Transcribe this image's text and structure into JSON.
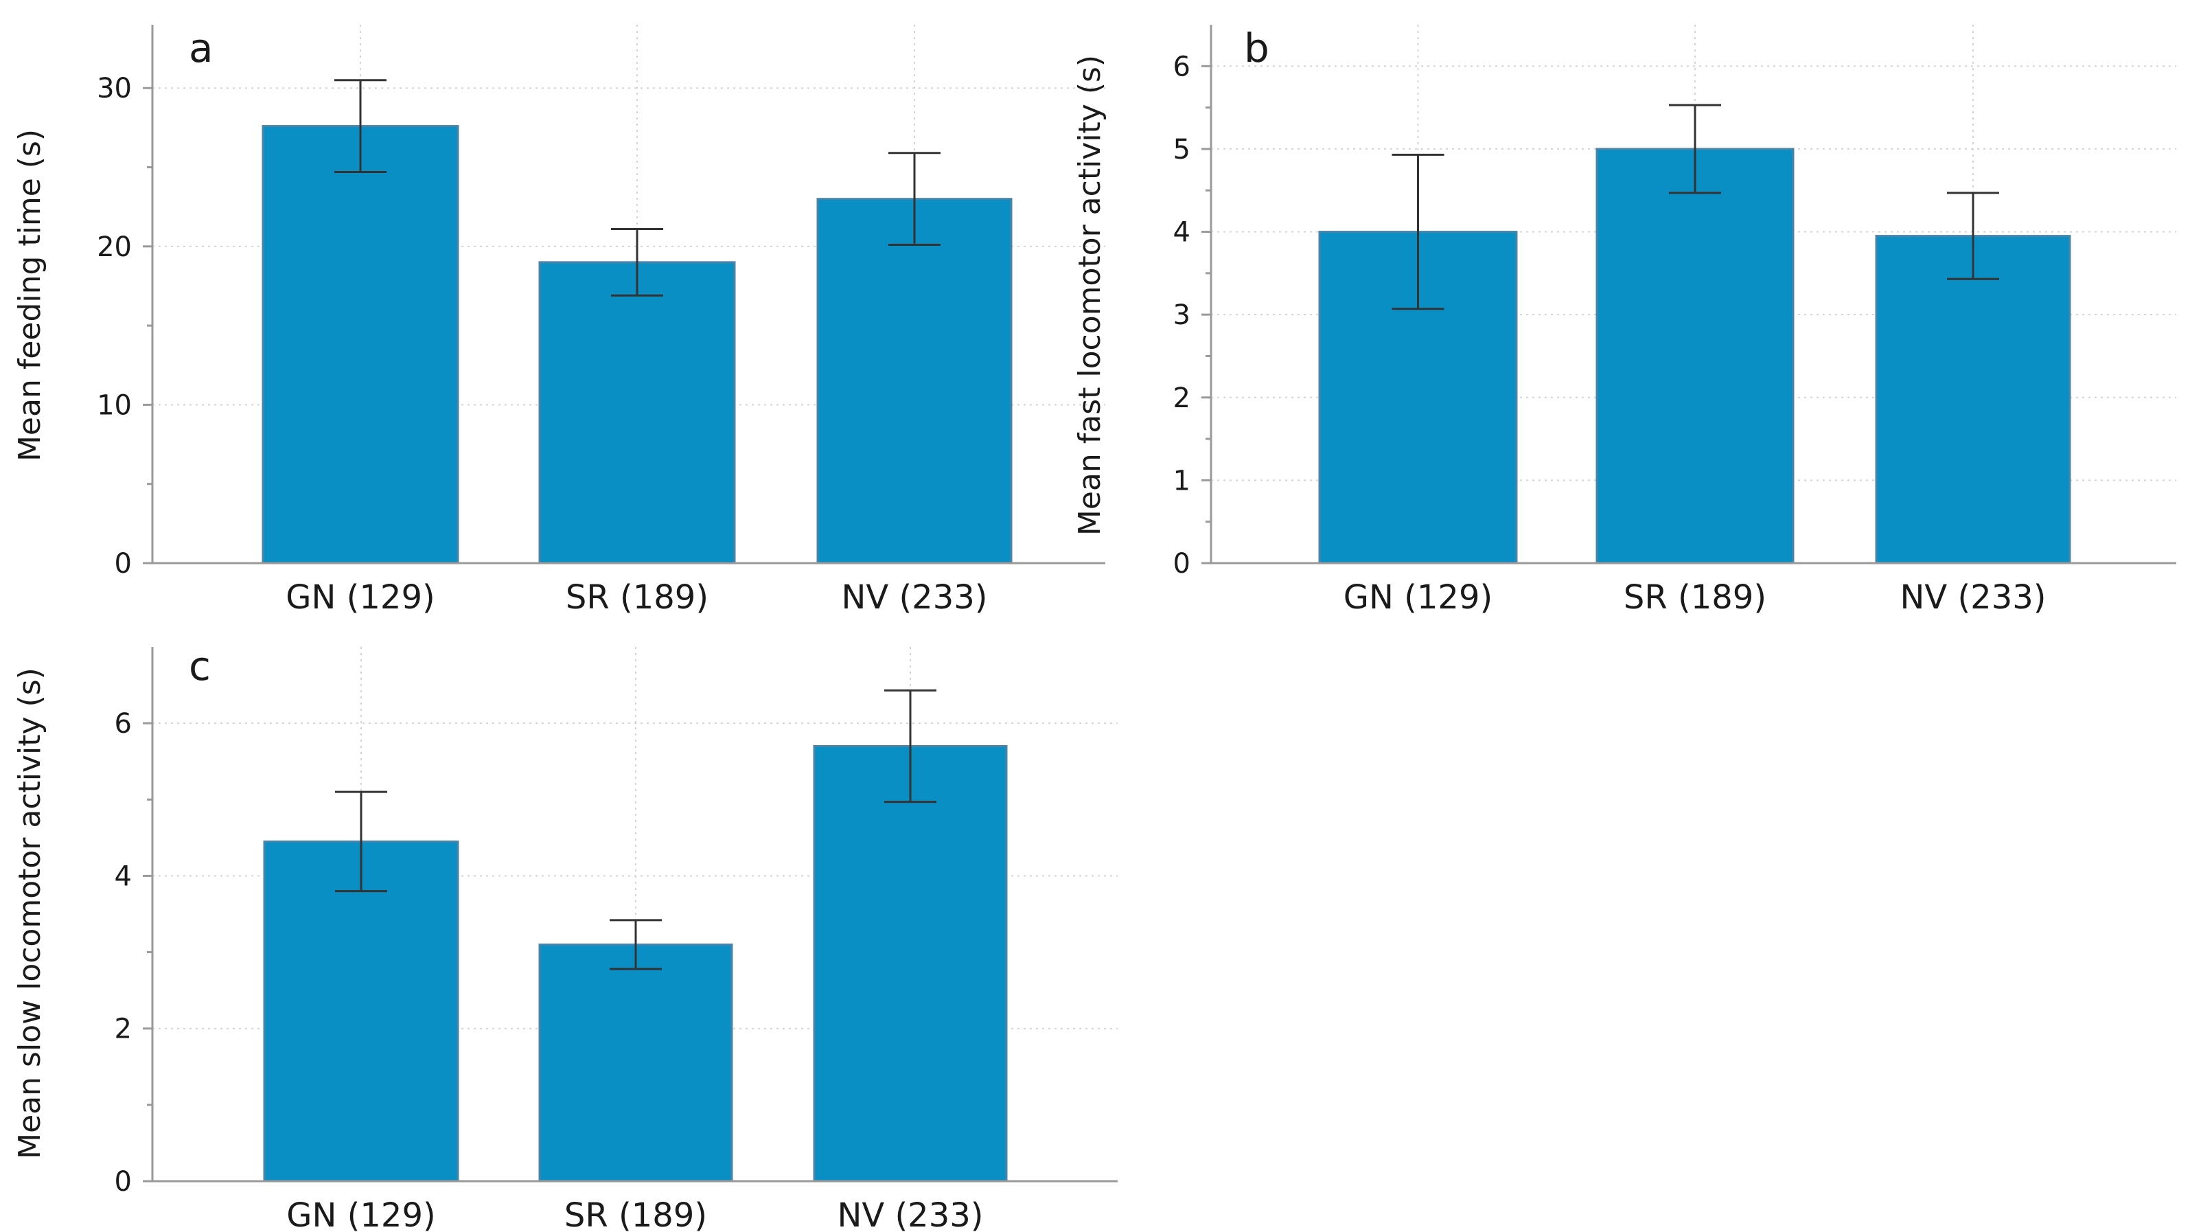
{
  "colors": {
    "bar": "#0a8fc4",
    "axis": "#9a9a9a"
  },
  "chart_data": [
    {
      "type": "bar",
      "panel": "a",
      "title": "",
      "xlabel": "",
      "ylabel": "Mean feeding time (s)",
      "ylim": [
        0,
        34
      ],
      "yticks": [
        0,
        10,
        20,
        30
      ],
      "categories": [
        "GN (129)",
        "SR (189)",
        "NV (233)"
      ],
      "values": [
        27.6,
        19.0,
        23.0
      ],
      "errors": [
        2.9,
        2.1,
        2.9
      ]
    },
    {
      "type": "bar",
      "panel": "b",
      "title": "",
      "xlabel": "",
      "ylabel": "Mean fast locomotor activity (s)",
      "ylim": [
        0,
        6.5
      ],
      "yticks": [
        0,
        1,
        2,
        3,
        4,
        5,
        6
      ],
      "categories": [
        "GN (129)",
        "SR (189)",
        "NV (233)"
      ],
      "values": [
        4.0,
        5.0,
        3.95
      ],
      "errors": [
        0.93,
        0.53,
        0.52
      ]
    },
    {
      "type": "bar",
      "panel": "c",
      "title": "",
      "xlabel": "",
      "ylabel": "Mean slow locomotor activity (s)",
      "ylim": [
        0,
        7
      ],
      "yticks": [
        0,
        2,
        4,
        6
      ],
      "categories": [
        "GN (129)",
        "SR (189)",
        "NV (233)"
      ],
      "values": [
        4.45,
        3.1,
        5.7
      ],
      "errors": [
        0.65,
        0.32,
        0.73
      ]
    }
  ]
}
